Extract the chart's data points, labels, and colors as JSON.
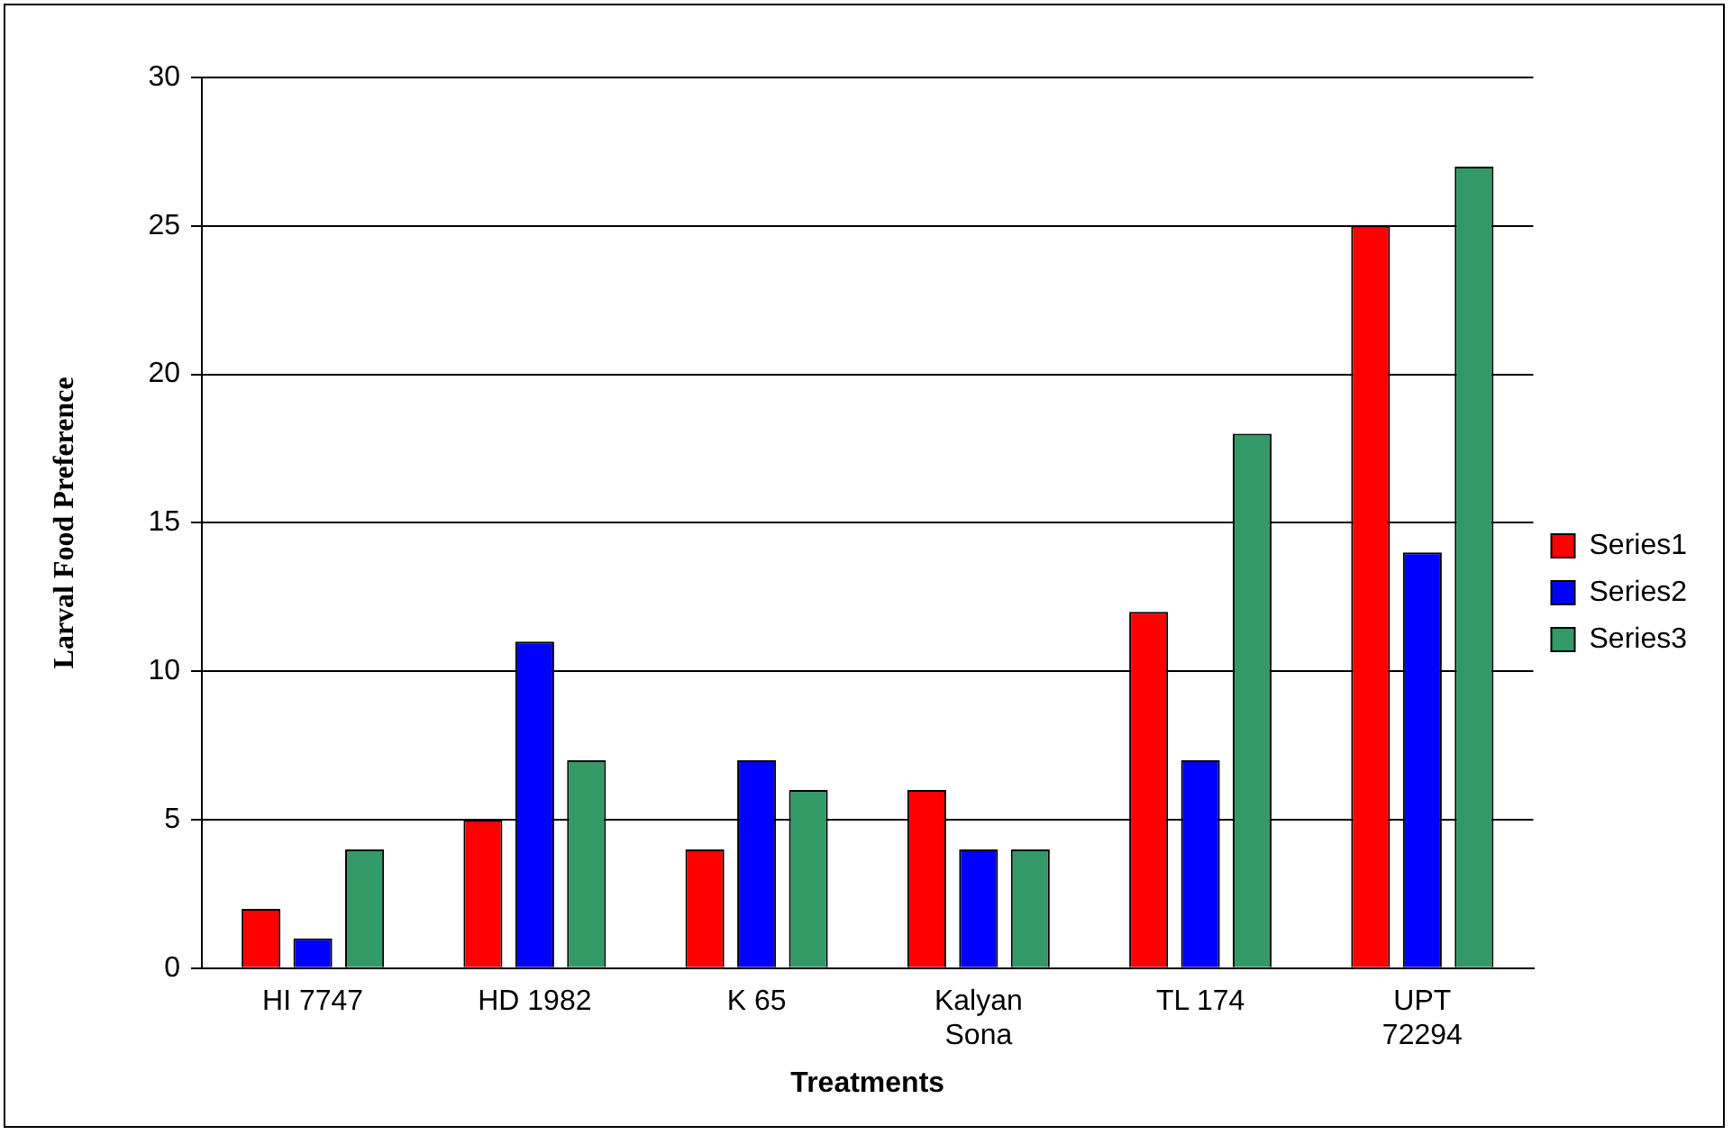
{
  "chart_data": {
    "type": "bar",
    "xlabel": "Treatments",
    "ylabel": "Larval Food Preference",
    "categories": [
      "HI 7747",
      "HD 1982",
      "K 65",
      "Kalyan Sona",
      "TL 174",
      "UPT 72294"
    ],
    "series": [
      {
        "name": "Series1",
        "color": "#ff0000",
        "values": [
          2,
          5,
          4,
          6,
          12,
          25
        ]
      },
      {
        "name": "Series2",
        "color": "#0000ff",
        "values": [
          1,
          11,
          7,
          4,
          7,
          14
        ]
      },
      {
        "name": "Series3",
        "color": "#339966",
        "values": [
          4,
          7,
          6,
          4,
          18,
          27
        ]
      }
    ],
    "ylim": [
      0,
      30
    ],
    "yticks": [
      0,
      5,
      10,
      15,
      20,
      25,
      30
    ],
    "grid": "y",
    "legend": "right"
  }
}
